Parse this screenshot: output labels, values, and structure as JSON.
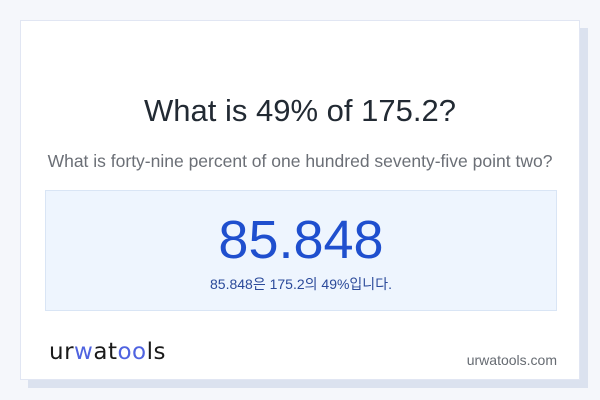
{
  "question": {
    "title": "What is 49% of 175.2?",
    "subtitle": "What is forty-nine percent of one hundred seventy-five point two?"
  },
  "result": {
    "value": "85.848",
    "sentence": "85.848은 175.2의 49%입니다."
  },
  "footer": {
    "logo_text": "urwatools",
    "site": "urwatools.com"
  },
  "colors": {
    "accent": "#1f4fce",
    "logo_accent": "#4f63e0"
  }
}
